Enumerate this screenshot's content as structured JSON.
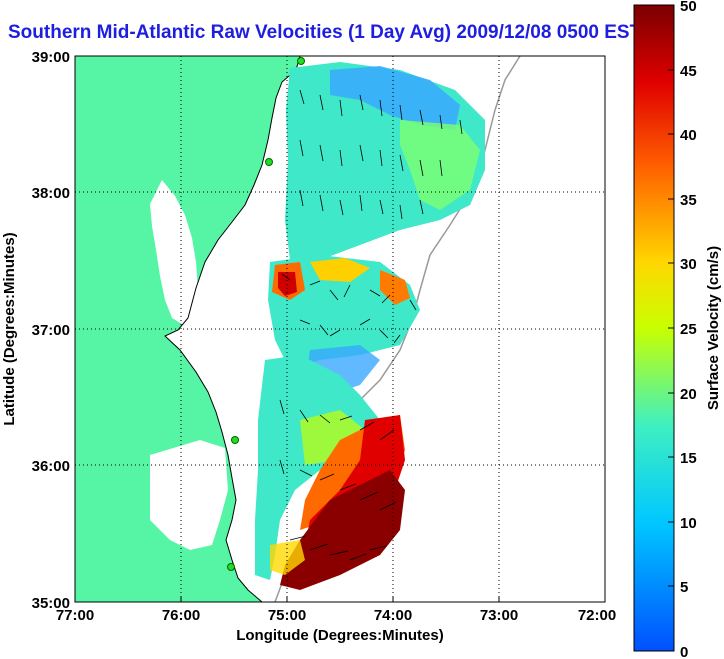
{
  "title": "Southern Mid-Atlantic Raw Velocities (1 Day Avg) 2009/12/08 0500 EST",
  "map": {
    "xlabel": "Longitude (Degrees:Minutes)",
    "ylabel": "Latitude (Degrees:Minutes)",
    "x_ticks": [
      "77:00",
      "76:00",
      "75:00",
      "74:00",
      "73:00",
      "72:00"
    ],
    "y_ticks": [
      "39:00",
      "38:00",
      "37:00",
      "36:00",
      "35:00"
    ],
    "land_color": "#55f5a5",
    "grid": "dotted"
  },
  "colorbar": {
    "label": "Surface Velocity (cm/s)",
    "ticks": [
      "50",
      "45",
      "40",
      "35",
      "30",
      "25",
      "20",
      "15",
      "10",
      "5",
      "0"
    ],
    "range": [
      0,
      50
    ]
  },
  "stations": [
    "station-marker-1",
    "station-marker-2",
    "station-marker-3",
    "station-marker-4"
  ]
}
